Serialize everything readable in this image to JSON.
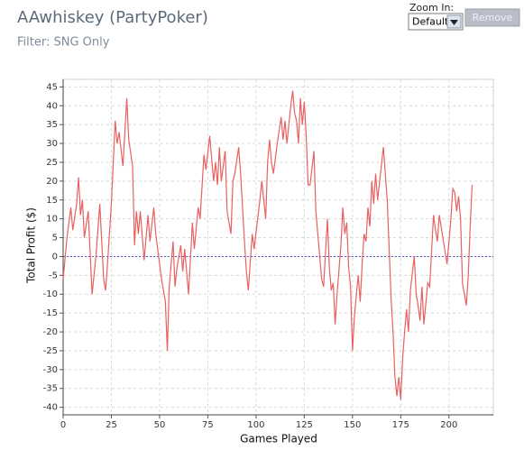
{
  "controls": {
    "zoom_label": "Zoom In:",
    "zoom_value": "Default",
    "remove": "Remove"
  },
  "chart_data": {
    "type": "line",
    "title": "AAwhiskey (PartyPoker)",
    "subtitle": "Filter: SNG Only",
    "x_label": "Games Played",
    "y_label": "Total Profit ($)",
    "xlim": [
      0,
      223
    ],
    "ylim": [
      -42,
      47
    ],
    "xticks": [
      0,
      25,
      50,
      75,
      100,
      125,
      150,
      175,
      200
    ],
    "yticks": [
      -40,
      -35,
      -30,
      -25,
      -20,
      -15,
      -10,
      -5,
      0,
      5,
      10,
      15,
      20,
      25,
      30,
      35,
      40,
      45
    ],
    "grid": true,
    "zero_line_color": "#5555cc",
    "series": [
      {
        "name": "Total Profit",
        "color": "#e86060",
        "x": [
          0,
          2,
          4,
          5,
          7,
          8,
          9,
          10,
          11,
          13,
          15,
          17,
          19,
          21,
          22,
          23,
          25,
          27,
          28,
          29,
          31,
          33,
          34,
          36,
          37,
          38,
          39,
          40,
          42,
          44,
          45,
          47,
          48,
          50,
          51,
          53,
          54,
          55,
          57,
          58,
          59,
          61,
          62,
          63,
          65,
          67,
          68,
          70,
          71,
          73,
          74,
          76,
          77,
          78,
          79,
          80,
          81,
          82,
          84,
          85,
          87,
          88,
          89,
          91,
          92,
          94,
          95,
          96,
          98,
          99,
          102,
          103,
          105,
          106,
          107,
          108,
          109,
          111,
          113,
          114,
          115,
          116,
          118,
          119,
          120,
          121,
          122,
          123,
          124,
          125,
          126,
          127,
          128,
          130,
          131,
          134,
          135,
          137,
          138,
          139,
          140,
          141,
          142,
          144,
          145,
          146,
          147,
          148,
          149,
          150,
          151,
          152,
          153,
          154,
          155,
          156,
          157,
          158,
          159,
          160,
          161,
          162,
          163,
          166,
          168,
          169,
          170,
          171,
          172,
          173,
          174,
          175,
          176,
          177,
          178,
          179,
          180,
          182,
          183,
          184,
          185,
          186,
          187,
          189,
          190,
          192,
          193,
          194,
          195,
          199,
          201,
          202,
          203,
          204,
          205,
          206,
          207,
          209,
          210,
          211,
          212
        ],
        "values": [
          -6,
          5,
          13,
          7,
          14,
          21,
          11,
          15,
          5,
          12,
          -10,
          0,
          14,
          -6,
          -9,
          -2,
          14,
          36,
          30,
          33,
          24,
          42,
          31,
          24,
          3,
          12,
          6,
          12,
          -1,
          11,
          4,
          13,
          6,
          -2,
          -6,
          -12,
          -25,
          -8,
          4,
          -8,
          -3,
          3,
          -4,
          2,
          -10,
          9,
          2,
          13,
          10,
          27,
          23,
          32,
          26,
          20,
          25,
          19,
          29,
          20,
          28,
          12,
          6,
          20,
          22,
          29,
          22,
          4,
          -4,
          -9,
          6,
          2,
          15,
          20,
          10,
          25,
          31,
          25,
          22,
          30,
          37,
          31,
          36,
          30,
          40,
          44,
          38,
          36,
          30,
          42,
          35,
          41,
          32,
          19,
          19,
          28,
          12,
          -6,
          -8,
          10,
          -3,
          -9,
          -7,
          -18,
          -10,
          3,
          13,
          6,
          9,
          -3,
          -8,
          -25,
          -16,
          -10,
          -5,
          -12,
          -2,
          6,
          4,
          13,
          8,
          20,
          14,
          22,
          15,
          29,
          15,
          2,
          -11,
          -20,
          -32,
          -37,
          -32,
          -38,
          -27,
          -20,
          -14,
          -20,
          -9,
          0,
          -10,
          -13,
          -17,
          -8,
          -18,
          -7,
          -8,
          11,
          7,
          4,
          11,
          -2,
          10,
          18,
          17,
          12,
          16,
          10,
          -7,
          -13,
          -5,
          8,
          19
        ]
      }
    ]
  }
}
